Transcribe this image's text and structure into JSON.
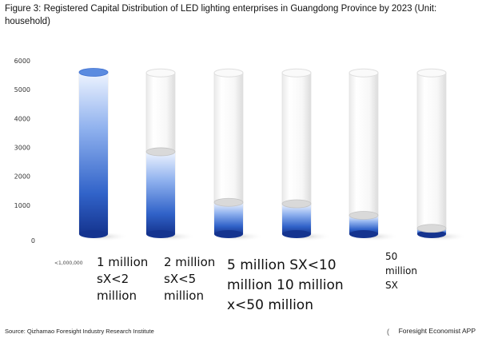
{
  "title": "Figure 3: Registered Capital Distribution of LED lighting enterprises in Guangdong Province by 2023 (Unit: household)",
  "source": "Source: Qizhamao Foresight Industry Research Institute",
  "brand": "Foresight Economist APP",
  "brand_mark": "(",
  "chart_data": {
    "type": "bar",
    "title": "Figure 3: Registered Capital Distribution of LED lighting enterprises in Guangdong Province by 2023 (Unit: household)",
    "categories": [
      "<1,000,000",
      "1 million sX<2 million",
      "2 million sX<5 million",
      "5 million SX<10 million 10 million x<50 million",
      "",
      "50 million SX"
    ],
    "values": [
      5600,
      2850,
      1100,
      1050,
      650,
      200
    ],
    "ylim": [
      0,
      6000
    ],
    "yticks": [
      0,
      1000,
      2000,
      3000,
      4000,
      5000,
      6000
    ],
    "grid": false,
    "legend": "none",
    "colors": {
      "top": "#ffffff",
      "bottom": "#1a3a9e",
      "mid": "#4a7bd8",
      "empty": "#f3f3f3"
    }
  }
}
